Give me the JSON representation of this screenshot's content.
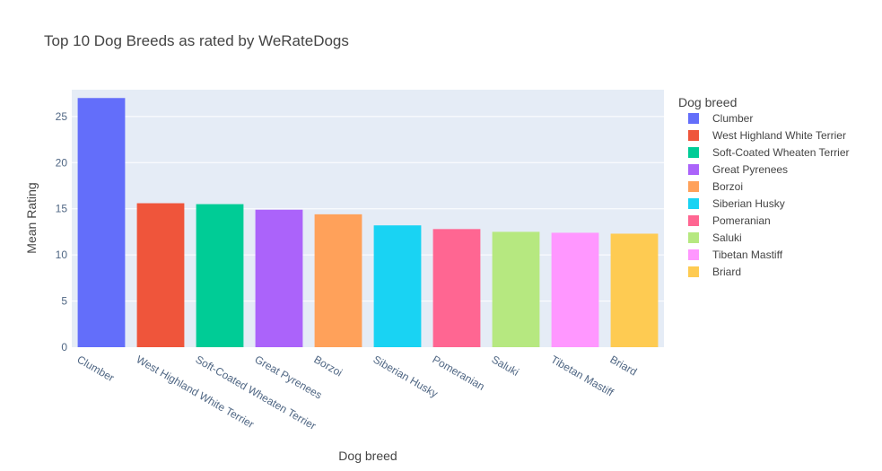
{
  "chart_data": {
    "type": "bar",
    "title": "Top 10 Dog Breeds as rated by WeRateDogs",
    "xlabel": "Dog breed",
    "ylabel": "Mean Rating",
    "ylim": [
      0,
      27.9
    ],
    "yticks": [
      0,
      5,
      10,
      15,
      20,
      25
    ],
    "grid": true,
    "legend_title": "Dog breed",
    "legend_position": "right",
    "categories": [
      "Clumber",
      "West Highland White Terrier",
      "Soft-Coated Wheaten Terrier",
      "Great Pyrenees",
      "Borzoi",
      "Siberian Husky",
      "Pomeranian",
      "Saluki",
      "Tibetan Mastiff",
      "Briard"
    ],
    "values": [
      27.0,
      15.6,
      15.5,
      14.9,
      14.4,
      13.2,
      12.8,
      12.5,
      12.4,
      12.3
    ],
    "colors": [
      "#636efa",
      "#ef553b",
      "#00cc96",
      "#ab63fa",
      "#ffa15a",
      "#19d3f3",
      "#ff6692",
      "#b6e880",
      "#ff97ff",
      "#fecb52"
    ]
  }
}
